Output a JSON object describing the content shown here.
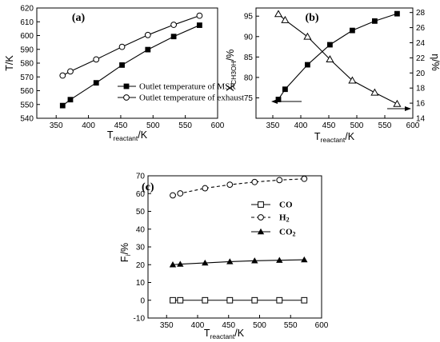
{
  "chart_data": [
    {
      "panel": "(a)",
      "type": "line",
      "x": [
        360,
        372,
        412,
        452,
        492,
        532,
        572
      ],
      "series": [
        {
          "name": "Outlet temperature of MSR",
          "marker": "filled-square",
          "values": [
            549.2,
            553.5,
            565.7,
            578.6,
            589.8,
            599.3,
            607.5
          ]
        },
        {
          "name": "Outlet temperature of exhaust",
          "marker": "open-circle",
          "values": [
            571.0,
            574.0,
            582.7,
            591.8,
            600.4,
            607.8,
            614.4
          ]
        }
      ],
      "xlim": [
        320,
        600
      ],
      "ylim": [
        540,
        620
      ],
      "xticks": [
        350,
        400,
        450,
        500,
        550,
        600
      ],
      "yticks": [
        540,
        550,
        560,
        570,
        580,
        590,
        600,
        610,
        620
      ],
      "xlabel": {
        "main": "T",
        "sub": "reactant",
        "unit": "/K"
      },
      "ylabel": "T/K",
      "legend_position": "bottom-right"
    },
    {
      "panel": "(b)",
      "type": "line",
      "x": [
        360,
        372,
        412,
        452,
        492,
        532,
        572
      ],
      "series": [
        {
          "name": "X",
          "axis": "left",
          "marker": "filled-square",
          "values": [
            74.6,
            77.1,
            83.1,
            88.0,
            91.5,
            93.8,
            95.6
          ]
        },
        {
          "name": "η",
          "axis": "right",
          "marker": "open-triangle",
          "values": [
            27.8,
            27.0,
            24.8,
            21.8,
            19.0,
            17.4,
            15.9
          ]
        }
      ],
      "xlim": [
        320,
        600
      ],
      "ylim_left": [
        70,
        97
      ],
      "ylim_right": [
        14,
        28.6
      ],
      "xticks": [
        350,
        400,
        450,
        500,
        550,
        600
      ],
      "yticks_left": [
        75,
        80,
        85,
        90,
        95
      ],
      "yticks_right": [
        14,
        16,
        18,
        20,
        22,
        24,
        26,
        28
      ],
      "xlabel": {
        "main": "T",
        "sub": "reactant",
        "unit": "/K"
      },
      "ylabel_left": {
        "main": "X",
        "sub": "CH3OH",
        "unit": "/%"
      },
      "ylabel_right": "η/%"
    },
    {
      "panel": "(c)",
      "type": "line",
      "x": [
        360,
        372,
        412,
        452,
        492,
        532,
        572
      ],
      "series": [
        {
          "name": "CO",
          "marker": "open-square",
          "line": "solid",
          "values": [
            0,
            0,
            0,
            0,
            0,
            0,
            0
          ]
        },
        {
          "name": "H",
          "name_sub": "2",
          "marker": "open-circle",
          "line": "dashed",
          "values": [
            59.0,
            60.1,
            63.0,
            65.0,
            66.5,
            67.6,
            68.3
          ]
        },
        {
          "name": "CO",
          "name_sub": "2",
          "marker": "filled-triangle",
          "line": "solid",
          "values": [
            20.0,
            20.3,
            21.0,
            21.7,
            22.2,
            22.5,
            22.8
          ]
        }
      ],
      "xlim": [
        320,
        600
      ],
      "ylim": [
        -10,
        70
      ],
      "xticks": [
        350,
        400,
        450,
        500,
        550,
        600
      ],
      "yticks": [
        -10,
        0,
        10,
        20,
        30,
        40,
        50,
        60,
        70
      ],
      "xlabel": {
        "main": "T",
        "sub": "reactant",
        "unit": "/K"
      },
      "ylabel": {
        "main": "F",
        "sub": "i",
        "unit": "/%"
      },
      "legend_position": "top-right"
    }
  ]
}
